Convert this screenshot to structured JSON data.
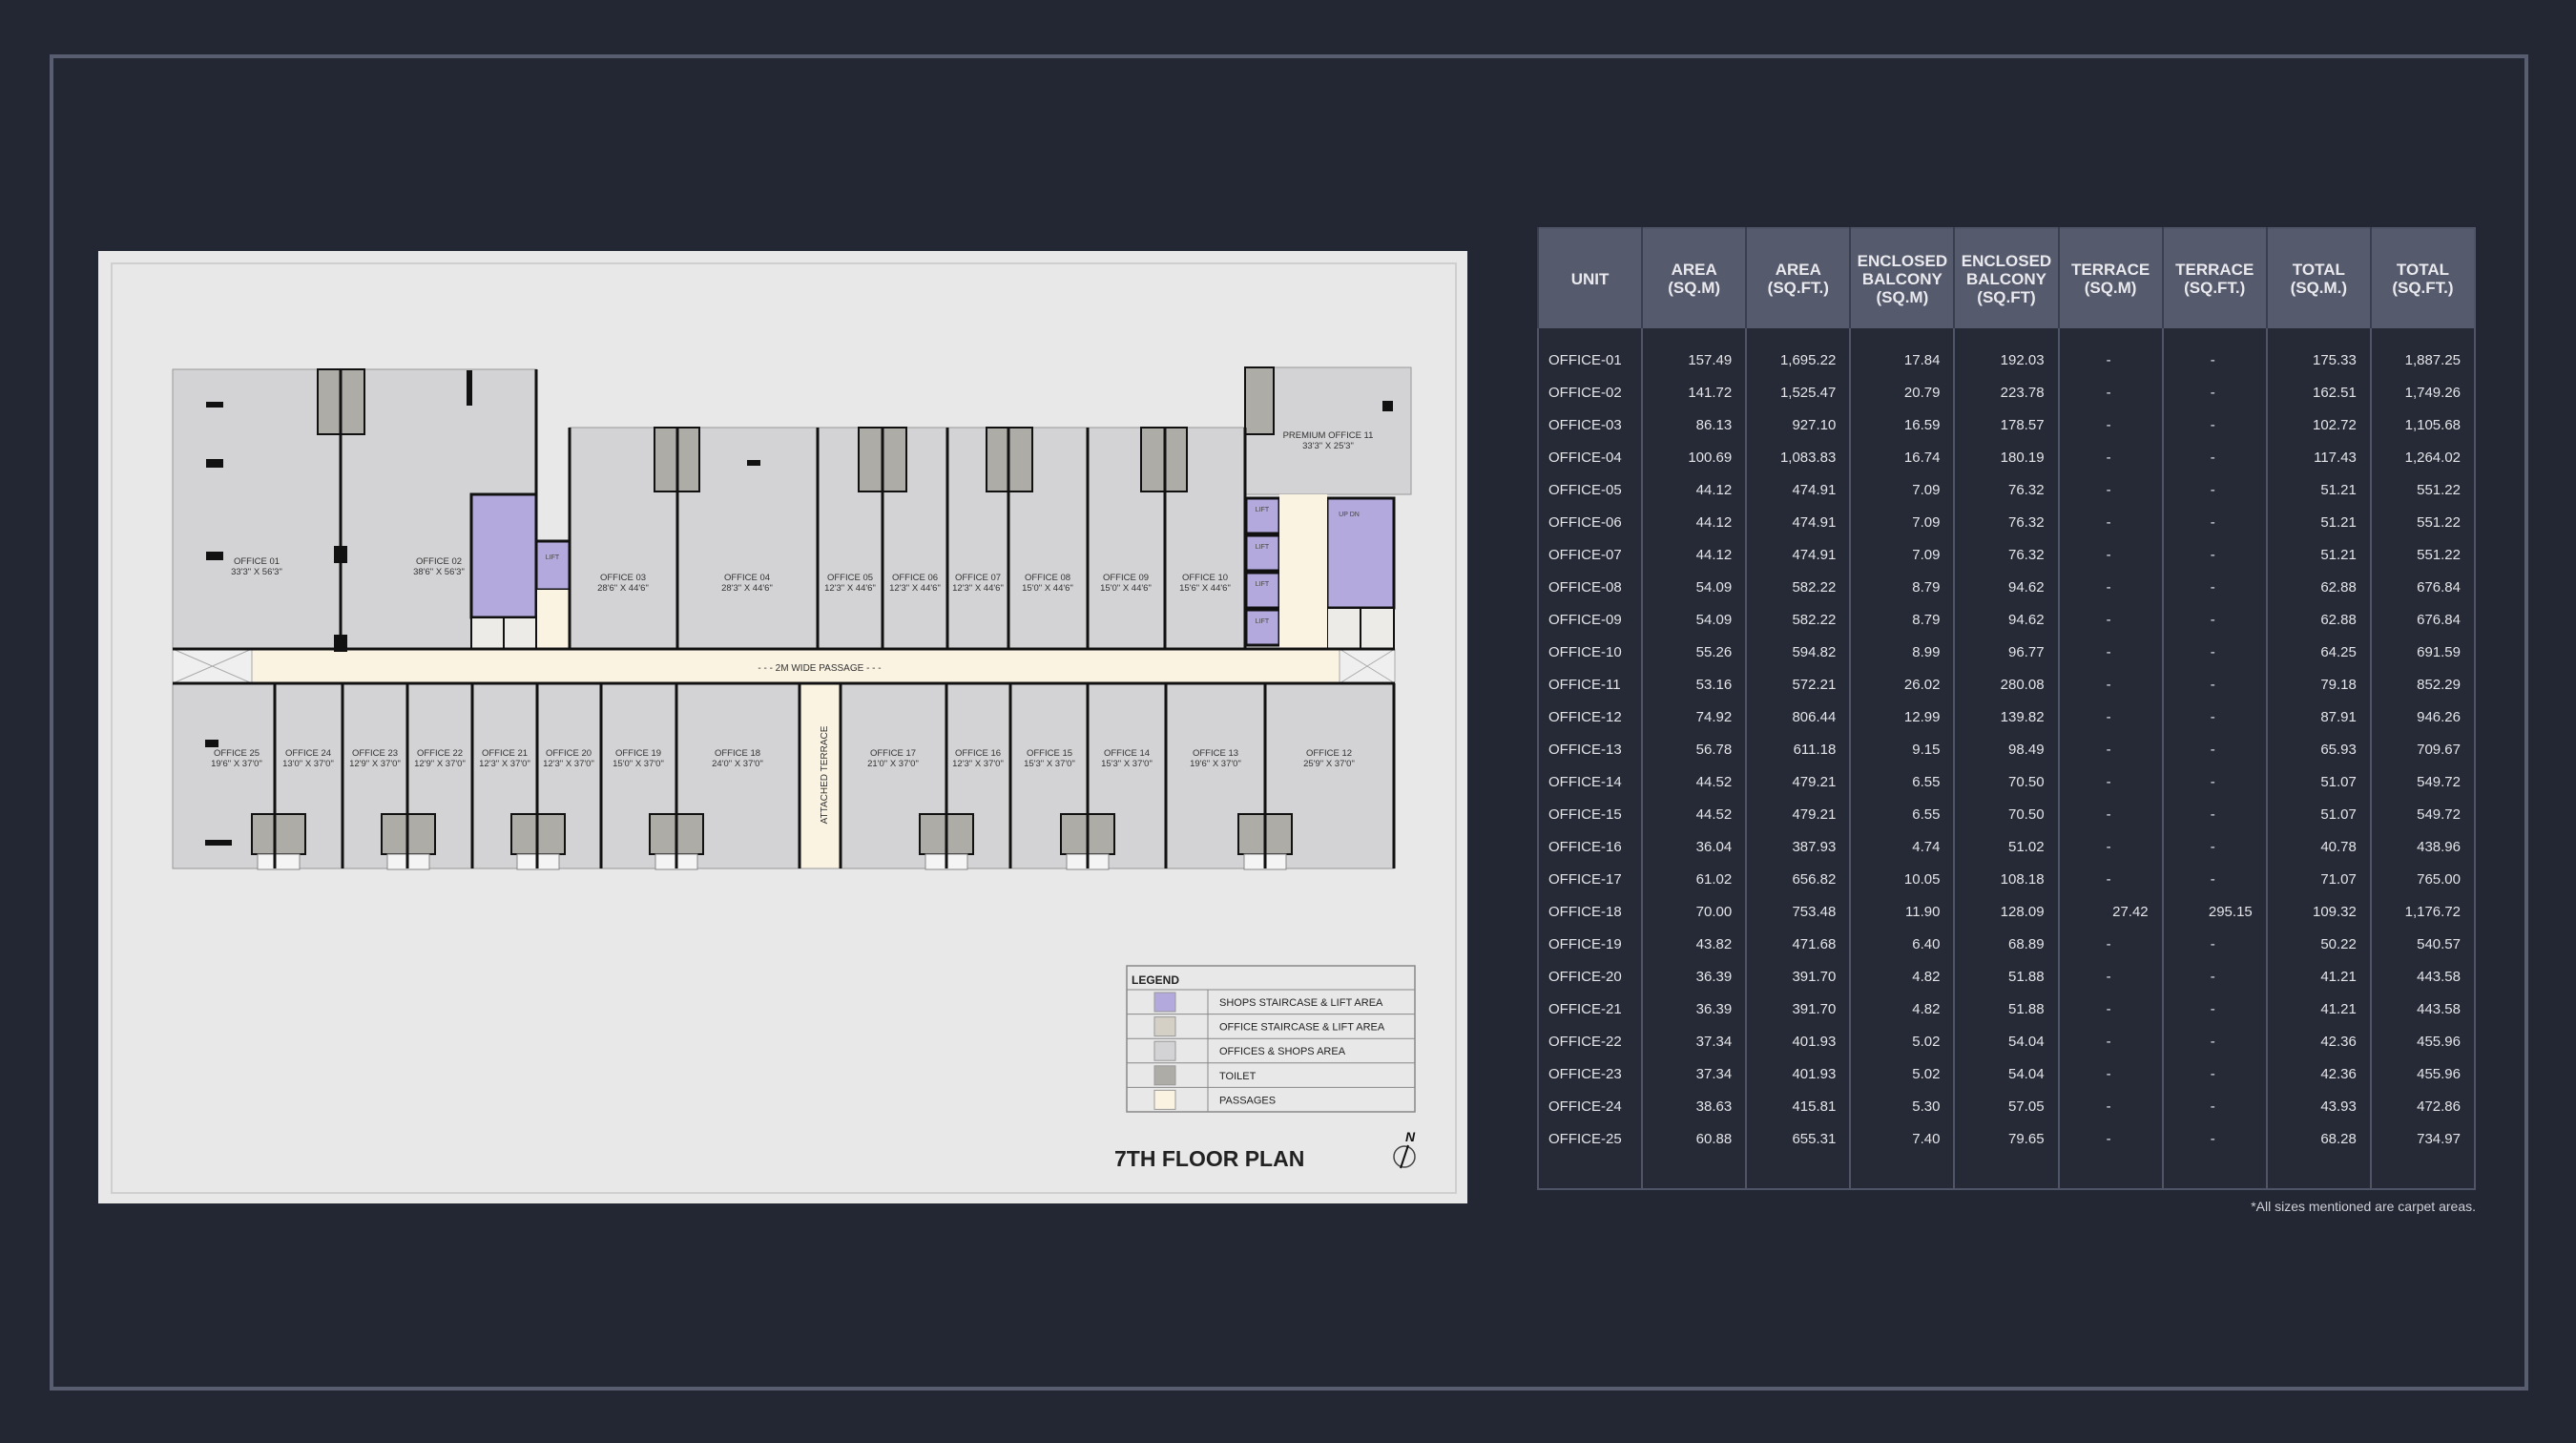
{
  "plan": {
    "title": "7TH FLOOR PLAN",
    "north_label": "N",
    "passage_label": "- - - 2M WIDE PASSAGE - - -",
    "terrace_label": "ATTACHED TERRACE",
    "lift_label": "LIFT",
    "stair_label": "UP DN",
    "units": [
      {
        "name": "OFFICE 01",
        "dims": "33'3\" X 56'3\""
      },
      {
        "name": "OFFICE 02",
        "dims": "38'6\" X 56'3\""
      },
      {
        "name": "OFFICE 03",
        "dims": "28'6\" X 44'6\""
      },
      {
        "name": "OFFICE 04",
        "dims": "28'3\" X 44'6\""
      },
      {
        "name": "OFFICE 05",
        "dims": "12'3\" X 44'6\""
      },
      {
        "name": "OFFICE 06",
        "dims": "12'3\" X 44'6\""
      },
      {
        "name": "OFFICE 07",
        "dims": "12'3\" X 44'6\""
      },
      {
        "name": "OFFICE 08",
        "dims": "15'0\" X 44'6\""
      },
      {
        "name": "OFFICE 09",
        "dims": "15'0\" X 44'6\""
      },
      {
        "name": "OFFICE 10",
        "dims": "15'6\" X 44'6\""
      },
      {
        "name": "PREMIUM OFFICE 11",
        "dims": "33'3\" X 25'3\""
      },
      {
        "name": "OFFICE 25",
        "dims": "19'6\" X 37'0\""
      },
      {
        "name": "OFFICE 24",
        "dims": "13'0\" X 37'0\""
      },
      {
        "name": "OFFICE 23",
        "dims": "12'9\" X 37'0\""
      },
      {
        "name": "OFFICE 22",
        "dims": "12'9\" X 37'0\""
      },
      {
        "name": "OFFICE 21",
        "dims": "12'3\" X 37'0\""
      },
      {
        "name": "OFFICE 20",
        "dims": "12'3\" X 37'0\""
      },
      {
        "name": "OFFICE 19",
        "dims": "15'0\" X 37'0\""
      },
      {
        "name": "OFFICE 18",
        "dims": "24'0\" X 37'0\""
      },
      {
        "name": "OFFICE 17",
        "dims": "21'0\" X 37'0\""
      },
      {
        "name": "OFFICE 16",
        "dims": "12'3\" X 37'0\""
      },
      {
        "name": "OFFICE 15",
        "dims": "15'3\" X 37'0\""
      },
      {
        "name": "OFFICE 14",
        "dims": "15'3\" X 37'0\""
      },
      {
        "name": "OFFICE 13",
        "dims": "19'6\" X 37'0\""
      },
      {
        "name": "OFFICE 12",
        "dims": "25'9\" X 37'0\""
      }
    ],
    "legend": {
      "title": "LEGEND",
      "items": [
        {
          "label": "SHOPS STAIRCASE & LIFT AREA",
          "color": "#b4a9dc"
        },
        {
          "label": "OFFICE STAIRCASE & LIFT AREA",
          "color": "#d4d0c6"
        },
        {
          "label": "OFFICES & SHOPS AREA",
          "color": "#d3d3d5"
        },
        {
          "label": "TOILET",
          "color": "#aeaca6"
        },
        {
          "label": "PASSAGES",
          "color": "#fbf3e2"
        }
      ]
    }
  },
  "table": {
    "headers": [
      "UNIT",
      "AREA\n(SQ.M)",
      "AREA\n(SQ.FT.)",
      "ENCLOSED\nBALCONY\n(SQ.M)",
      "ENCLOSED\nBALCONY\n(SQ.FT)",
      "TERRACE\n(SQ.M)",
      "TERRACE\n(SQ.FT.)",
      "TOTAL\n(SQ.M.)",
      "TOTAL\n(SQ.FT.)"
    ],
    "rows": [
      [
        "OFFICE-01",
        "157.49",
        "1,695.22",
        "17.84",
        "192.03",
        "-",
        "-",
        "175.33",
        "1,887.25"
      ],
      [
        "OFFICE-02",
        "141.72",
        "1,525.47",
        "20.79",
        "223.78",
        "-",
        "-",
        "162.51",
        "1,749.26"
      ],
      [
        "OFFICE-03",
        "86.13",
        "927.10",
        "16.59",
        "178.57",
        "-",
        "-",
        "102.72",
        "1,105.68"
      ],
      [
        "OFFICE-04",
        "100.69",
        "1,083.83",
        "16.74",
        "180.19",
        "-",
        "-",
        "117.43",
        "1,264.02"
      ],
      [
        "OFFICE-05",
        "44.12",
        "474.91",
        "7.09",
        "76.32",
        "-",
        "-",
        "51.21",
        "551.22"
      ],
      [
        "OFFICE-06",
        "44.12",
        "474.91",
        "7.09",
        "76.32",
        "-",
        "-",
        "51.21",
        "551.22"
      ],
      [
        "OFFICE-07",
        "44.12",
        "474.91",
        "7.09",
        "76.32",
        "-",
        "-",
        "51.21",
        "551.22"
      ],
      [
        "OFFICE-08",
        "54.09",
        "582.22",
        "8.79",
        "94.62",
        "-",
        "-",
        "62.88",
        "676.84"
      ],
      [
        "OFFICE-09",
        "54.09",
        "582.22",
        "8.79",
        "94.62",
        "-",
        "-",
        "62.88",
        "676.84"
      ],
      [
        "OFFICE-10",
        "55.26",
        "594.82",
        "8.99",
        "96.77",
        "-",
        "-",
        "64.25",
        "691.59"
      ],
      [
        "OFFICE-11",
        "53.16",
        "572.21",
        "26.02",
        "280.08",
        "-",
        "-",
        "79.18",
        "852.29"
      ],
      [
        "OFFICE-12",
        "74.92",
        "806.44",
        "12.99",
        "139.82",
        "-",
        "-",
        "87.91",
        "946.26"
      ],
      [
        "OFFICE-13",
        "56.78",
        "611.18",
        "9.15",
        "98.49",
        "-",
        "-",
        "65.93",
        "709.67"
      ],
      [
        "OFFICE-14",
        "44.52",
        "479.21",
        "6.55",
        "70.50",
        "-",
        "-",
        "51.07",
        "549.72"
      ],
      [
        "OFFICE-15",
        "44.52",
        "479.21",
        "6.55",
        "70.50",
        "-",
        "-",
        "51.07",
        "549.72"
      ],
      [
        "OFFICE-16",
        "36.04",
        "387.93",
        "4.74",
        "51.02",
        "-",
        "-",
        "40.78",
        "438.96"
      ],
      [
        "OFFICE-17",
        "61.02",
        "656.82",
        "10.05",
        "108.18",
        "-",
        "-",
        "71.07",
        "765.00"
      ],
      [
        "OFFICE-18",
        "70.00",
        "753.48",
        "11.90",
        "128.09",
        "27.42",
        "295.15",
        "109.32",
        "1,176.72"
      ],
      [
        "OFFICE-19",
        "43.82",
        "471.68",
        "6.40",
        "68.89",
        "-",
        "-",
        "50.22",
        "540.57"
      ],
      [
        "OFFICE-20",
        "36.39",
        "391.70",
        "4.82",
        "51.88",
        "-",
        "-",
        "41.21",
        "443.58"
      ],
      [
        "OFFICE-21",
        "36.39",
        "391.70",
        "4.82",
        "51.88",
        "-",
        "-",
        "41.21",
        "443.58"
      ],
      [
        "OFFICE-22",
        "37.34",
        "401.93",
        "5.02",
        "54.04",
        "-",
        "-",
        "42.36",
        "455.96"
      ],
      [
        "OFFICE-23",
        "37.34",
        "401.93",
        "5.02",
        "54.04",
        "-",
        "-",
        "42.36",
        "455.96"
      ],
      [
        "OFFICE-24",
        "38.63",
        "415.81",
        "5.30",
        "57.05",
        "-",
        "-",
        "43.93",
        "472.86"
      ],
      [
        "OFFICE-25",
        "60.88",
        "655.31",
        "7.40",
        "79.65",
        "-",
        "-",
        "68.28",
        "734.97"
      ]
    ],
    "footnote": "*All sizes mentioned are carpet areas."
  }
}
